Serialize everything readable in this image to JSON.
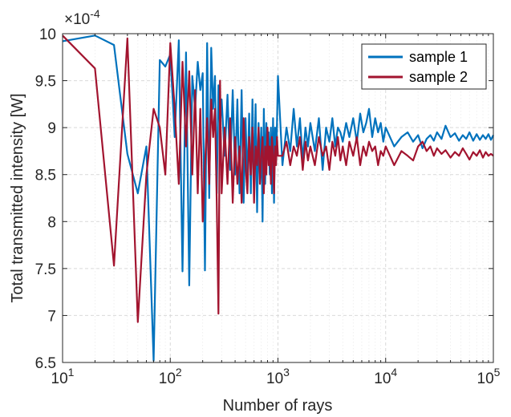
{
  "chart_data": {
    "type": "line",
    "title": "",
    "xlabel": "Number of rays",
    "ylabel": "Total transmitted intensity [W]",
    "x_scale": "log",
    "xlim": [
      10,
      100000
    ],
    "ylim": [
      6.5,
      10
    ],
    "y_multiplier_label": "×10",
    "y_multiplier_exponent": "-4",
    "grid": true,
    "legend_position": "top-right",
    "x_ticks": [
      {
        "base": "10",
        "exp": "1",
        "value": 10
      },
      {
        "base": "10",
        "exp": "2",
        "value": 100
      },
      {
        "base": "10",
        "exp": "3",
        "value": 1000
      },
      {
        "base": "10",
        "exp": "4",
        "value": 10000
      },
      {
        "base": "10",
        "exp": "5",
        "value": 100000
      }
    ],
    "y_ticks": [
      "6.5",
      "7",
      "7.5",
      "8",
      "8.5",
      "9",
      "9.5",
      "10"
    ],
    "series": [
      {
        "name": "sample 1",
        "color": "#0072bd",
        "x": [
          10,
          20,
          30,
          40,
          50,
          60,
          70,
          80,
          90,
          100,
          110,
          120,
          130,
          140,
          150,
          160,
          170,
          180,
          190,
          200,
          210,
          220,
          230,
          240,
          250,
          260,
          270,
          280,
          290,
          300,
          320,
          340,
          360,
          380,
          400,
          420,
          440,
          460,
          480,
          500,
          520,
          540,
          560,
          580,
          600,
          620,
          640,
          660,
          680,
          700,
          720,
          740,
          760,
          780,
          800,
          820,
          840,
          860,
          880,
          900,
          920,
          940,
          960,
          980,
          1000,
          1100,
          1200,
          1300,
          1400,
          1500,
          1600,
          1700,
          1800,
          1900,
          2000,
          2200,
          2400,
          2600,
          2800,
          3000,
          3200,
          3400,
          3600,
          3800,
          4000,
          4300,
          4600,
          5000,
          5400,
          5800,
          6200,
          6600,
          7000,
          7500,
          8000,
          8500,
          9000,
          9500,
          10000,
          12000,
          14000,
          16000,
          18000,
          20000,
          22000,
          24000,
          26000,
          28000,
          30000,
          33000,
          36000,
          40000,
          44000,
          48000,
          52000,
          56000,
          60000,
          65000,
          70000,
          75000,
          80000,
          85000,
          90000,
          95000,
          100000
        ],
        "y": [
          9.92,
          9.98,
          9.88,
          8.72,
          8.3,
          8.8,
          6.52,
          9.72,
          9.65,
          9.78,
          8.9,
          9.93,
          7.47,
          9.8,
          7.32,
          9.55,
          9.2,
          9.7,
          9.4,
          9.58,
          7.48,
          9.9,
          8.25,
          9.85,
          9.2,
          9.55,
          8.3,
          9.45,
          9.0,
          9.3,
          8.7,
          9.35,
          8.55,
          9.4,
          8.5,
          9.3,
          8.3,
          9.4,
          8.2,
          9.1,
          8.4,
          9.15,
          8.3,
          9.3,
          8.4,
          9.25,
          8.1,
          9.05,
          8.6,
          9.0,
          8.0,
          9.2,
          8.4,
          9.05,
          8.7,
          8.95,
          8.5,
          9.0,
          8.3,
          9.1,
          8.2,
          9.0,
          8.65,
          9.05,
          9.55,
          8.6,
          9.0,
          8.75,
          9.2,
          8.8,
          9.1,
          8.65,
          9.0,
          8.8,
          9.05,
          8.75,
          9.1,
          8.55,
          9.0,
          8.85,
          9.1,
          8.8,
          9.0,
          8.95,
          8.85,
          9.05,
          8.9,
          9.1,
          8.85,
          9.15,
          8.95,
          9.05,
          9.2,
          8.9,
          9.1,
          8.95,
          9.05,
          8.85,
          9.0,
          8.8,
          8.9,
          8.95,
          8.85,
          8.92,
          8.78,
          8.88,
          8.92,
          8.86,
          8.95,
          8.88,
          9.02,
          8.9,
          8.94,
          8.86,
          8.92,
          8.88,
          8.95,
          8.86,
          8.93,
          8.87,
          8.92,
          8.88,
          8.93,
          8.87,
          8.92
        ]
      },
      {
        "name": "sample 2",
        "color": "#a2142f",
        "x": [
          10,
          20,
          30,
          40,
          50,
          60,
          70,
          80,
          90,
          100,
          110,
          120,
          130,
          140,
          150,
          160,
          170,
          180,
          190,
          200,
          210,
          220,
          230,
          240,
          250,
          260,
          270,
          280,
          290,
          300,
          320,
          340,
          360,
          380,
          400,
          420,
          440,
          460,
          480,
          500,
          520,
          540,
          560,
          580,
          600,
          620,
          640,
          660,
          680,
          700,
          720,
          740,
          760,
          780,
          800,
          820,
          840,
          860,
          880,
          900,
          920,
          940,
          960,
          980,
          1000,
          1100,
          1200,
          1300,
          1400,
          1500,
          1600,
          1700,
          1800,
          1900,
          2000,
          2200,
          2400,
          2600,
          2800,
          3000,
          3200,
          3400,
          3600,
          3800,
          4000,
          4300,
          4600,
          5000,
          5400,
          5800,
          6200,
          6600,
          7000,
          7500,
          8000,
          8500,
          9000,
          9500,
          10000,
          12000,
          14000,
          16000,
          18000,
          20000,
          22000,
          24000,
          26000,
          28000,
          30000,
          33000,
          36000,
          40000,
          44000,
          48000,
          52000,
          56000,
          60000,
          65000,
          70000,
          75000,
          80000,
          85000,
          90000,
          95000,
          100000
        ],
        "y": [
          9.98,
          9.63,
          7.53,
          9.95,
          6.93,
          8.5,
          9.2,
          9.0,
          8.5,
          9.9,
          9.2,
          8.4,
          9.7,
          8.8,
          9.6,
          8.5,
          9.4,
          8.3,
          9.2,
          8.0,
          8.6,
          9.1,
          8.4,
          9.3,
          8.9,
          9.2,
          8.2,
          7.02,
          9.5,
          8.3,
          9.0,
          8.4,
          9.1,
          8.2,
          8.9,
          8.4,
          8.8,
          8.2,
          9.1,
          8.6,
          8.3,
          8.9,
          8.5,
          9.0,
          8.2,
          8.8,
          8.6,
          9.0,
          8.4,
          8.7,
          8.9,
          8.3,
          8.8,
          8.5,
          9.0,
          8.6,
          8.8,
          8.4,
          8.9,
          8.7,
          8.3,
          8.8,
          8.6,
          8.9,
          8.7,
          8.7,
          8.85,
          8.6,
          8.8,
          8.7,
          8.9,
          8.55,
          8.85,
          8.65,
          8.8,
          8.6,
          8.9,
          8.7,
          8.8,
          8.55,
          8.85,
          8.7,
          8.9,
          8.65,
          8.8,
          8.6,
          8.85,
          8.7,
          8.9,
          8.6,
          8.8,
          8.7,
          8.85,
          8.75,
          8.8,
          8.6,
          8.75,
          8.7,
          8.8,
          8.6,
          8.75,
          8.7,
          8.65,
          8.8,
          8.85,
          8.75,
          8.8,
          8.7,
          8.78,
          8.72,
          8.76,
          8.68,
          8.74,
          8.7,
          8.78,
          8.72,
          8.66,
          8.74,
          8.7,
          8.76,
          8.68,
          8.74,
          8.7,
          8.72,
          8.7
        ]
      }
    ]
  }
}
